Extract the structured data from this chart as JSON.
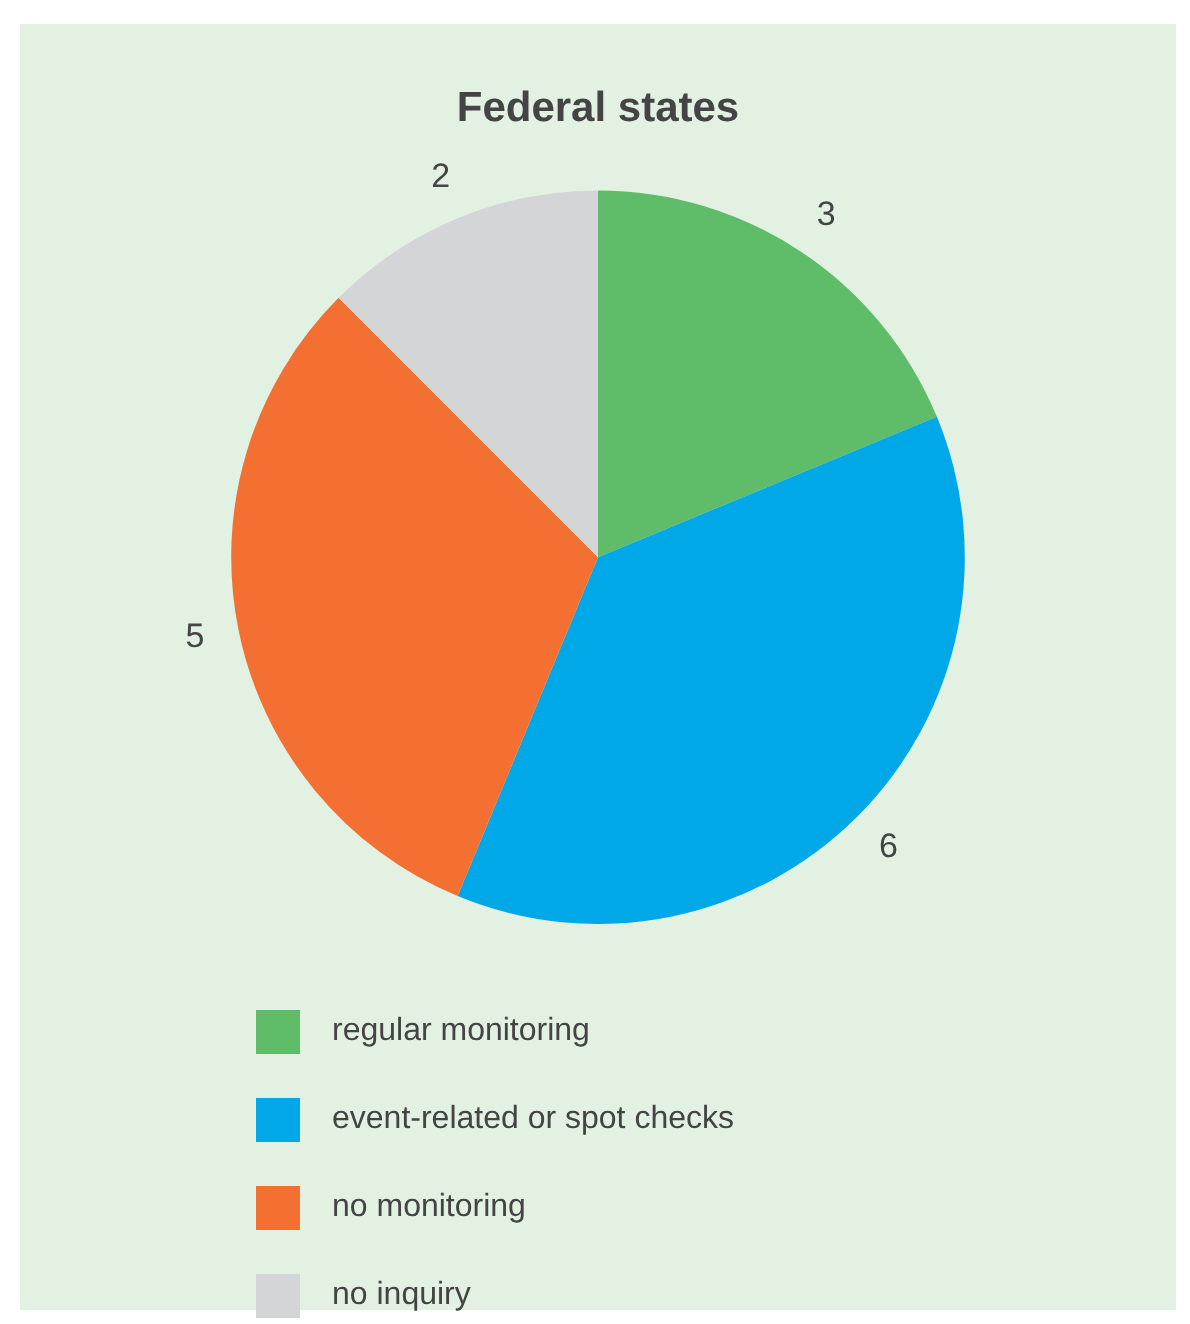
{
  "chart_data": {
    "type": "pie",
    "title": "Federal states",
    "categories": [
      "regular monitoring",
      "event-related or spot checks",
      "no monitoring",
      "no inquiry"
    ],
    "values": [
      3,
      6,
      5,
      2
    ],
    "colors": [
      "#5fbd6a",
      "#00a8e8",
      "#f37032",
      "#d4d5d7"
    ],
    "data_labels": true,
    "legend": "bottom"
  }
}
